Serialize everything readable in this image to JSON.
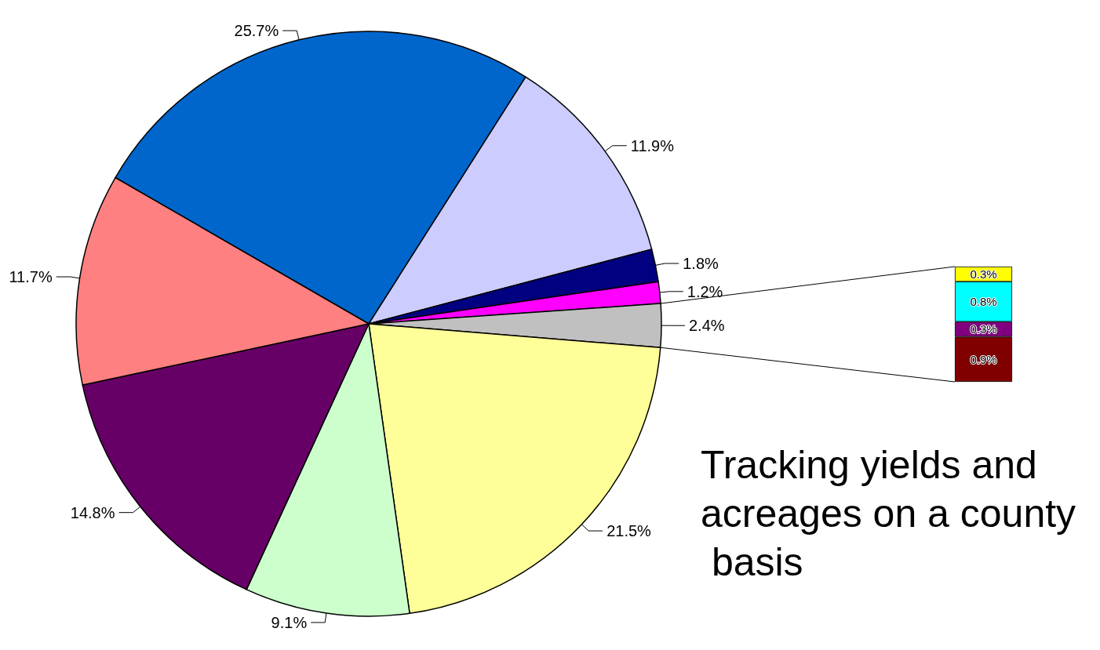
{
  "chart_data": [
    {
      "type": "pie",
      "categories": [
        null,
        null,
        null,
        null,
        null,
        null,
        null,
        null,
        null
      ],
      "values": [
        25.7,
        11.9,
        1.8,
        1.2,
        2.4,
        21.5,
        9.1,
        14.8,
        11.7
      ],
      "colors": [
        "#0066cc",
        "#ccccff",
        "#000080",
        "#ff00ff",
        "#c0c0c0",
        "#ffff99",
        "#ccffcc",
        "#660066",
        "#ff8080"
      ],
      "value_labels": [
        "25.7%",
        "11.9%",
        "1.8%",
        "1.2%",
        "2.4%",
        "21.5%",
        "9.1%",
        "14.8%",
        "11.7%"
      ],
      "annotations": [
        "Tracking yields and acreages on a county basis"
      ]
    },
    {
      "type": "bar",
      "categories": [
        null
      ],
      "stacked": true,
      "series": [
        {
          "color": "#800000",
          "values": [
            0.9
          ],
          "value_labels": [
            "0.9%"
          ]
        },
        {
          "color": "#800080",
          "values": [
            0.3
          ],
          "value_labels": [
            "0.3%"
          ]
        },
        {
          "color": "#00ffff",
          "values": [
            0.8
          ],
          "value_labels": [
            "0.8%"
          ]
        },
        {
          "color": "#ffff00",
          "values": [
            0.3
          ],
          "value_labels": [
            "0.3%"
          ]
        }
      ]
    }
  ]
}
